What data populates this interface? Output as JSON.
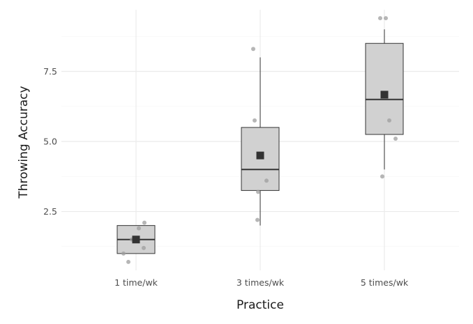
{
  "chart_data": {
    "type": "boxplot",
    "xlabel": "Practice",
    "ylabel": "Throwing Accuracy",
    "categories": [
      "1 time/wk",
      "3 times/wk",
      "5 times/wk"
    ],
    "ylim": [
      0.4,
      9.7
    ],
    "y_ticks": [
      2.5,
      5.0,
      7.5
    ],
    "y_tick_labels": [
      "2.5",
      "5.0",
      "7.5"
    ],
    "grid": true,
    "legend": "none",
    "colors": {
      "box_fill": "#d1d1d1",
      "outline": "#333333",
      "points": "#9e9e9e"
    },
    "boxes": [
      {
        "category": "1 time/wk",
        "min": 1.0,
        "q1": 1.0,
        "median": 1.5,
        "q3": 2.0,
        "max": 2.0,
        "mean": 1.5,
        "points": [
          0.7,
          1.0,
          1.2,
          1.5,
          1.9,
          2.1
        ]
      },
      {
        "category": "3 times/wk",
        "min": 2.0,
        "q1": 3.25,
        "median": 4.0,
        "q3": 5.5,
        "max": 8.0,
        "mean": 4.5,
        "points": [
          2.2,
          3.2,
          3.6,
          5.75,
          8.3
        ]
      },
      {
        "category": "5 times/wk",
        "min": 4.0,
        "q1": 5.25,
        "median": 6.5,
        "q3": 8.5,
        "max": 9.0,
        "mean": 6.67,
        "points": [
          3.75,
          5.1,
          5.75,
          9.4,
          9.4
        ]
      }
    ]
  }
}
